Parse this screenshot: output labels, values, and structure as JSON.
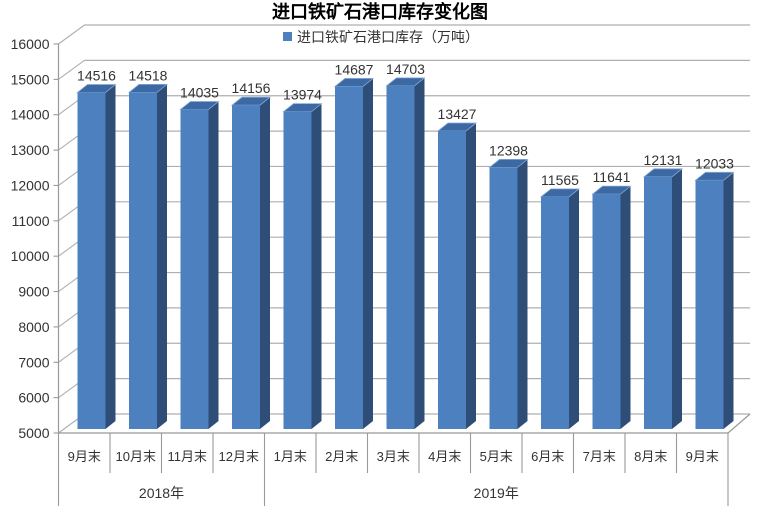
{
  "chart_data": {
    "type": "bar",
    "style": "3d-column",
    "title": "进口铁矿石港口库存变化图",
    "legend_position": "top-center",
    "categories": [
      "9月末",
      "10月末",
      "11月末",
      "12月末",
      "1月末",
      "2月末",
      "3月末",
      "4月末",
      "5月末",
      "6月末",
      "7月末",
      "8月末",
      "9月末"
    ],
    "group_labels": [
      {
        "label": "2018年",
        "span": 4
      },
      {
        "label": "2019年",
        "span": 9
      }
    ],
    "series": [
      {
        "name": "进口铁矿石港口库存（万吨）",
        "values": [
          14516,
          14518,
          14035,
          14156,
          13974,
          14687,
          14703,
          13427,
          12398,
          11565,
          11641,
          12131,
          12033
        ]
      }
    ],
    "ylim": [
      5000,
      16000
    ],
    "yticks": [
      5000,
      6000,
      7000,
      8000,
      9000,
      10000,
      11000,
      12000,
      13000,
      14000,
      15000,
      16000
    ],
    "grid": true,
    "data_labels": true,
    "colors": {
      "bar_front": "#4D80BE",
      "bar_top": "#3C69A4",
      "bar_side": "#2E4D77",
      "bar_top_highlight": "#84A9D6",
      "gridline": "#AFAFAF",
      "axis": "#999999",
      "text": "#333333"
    }
  }
}
